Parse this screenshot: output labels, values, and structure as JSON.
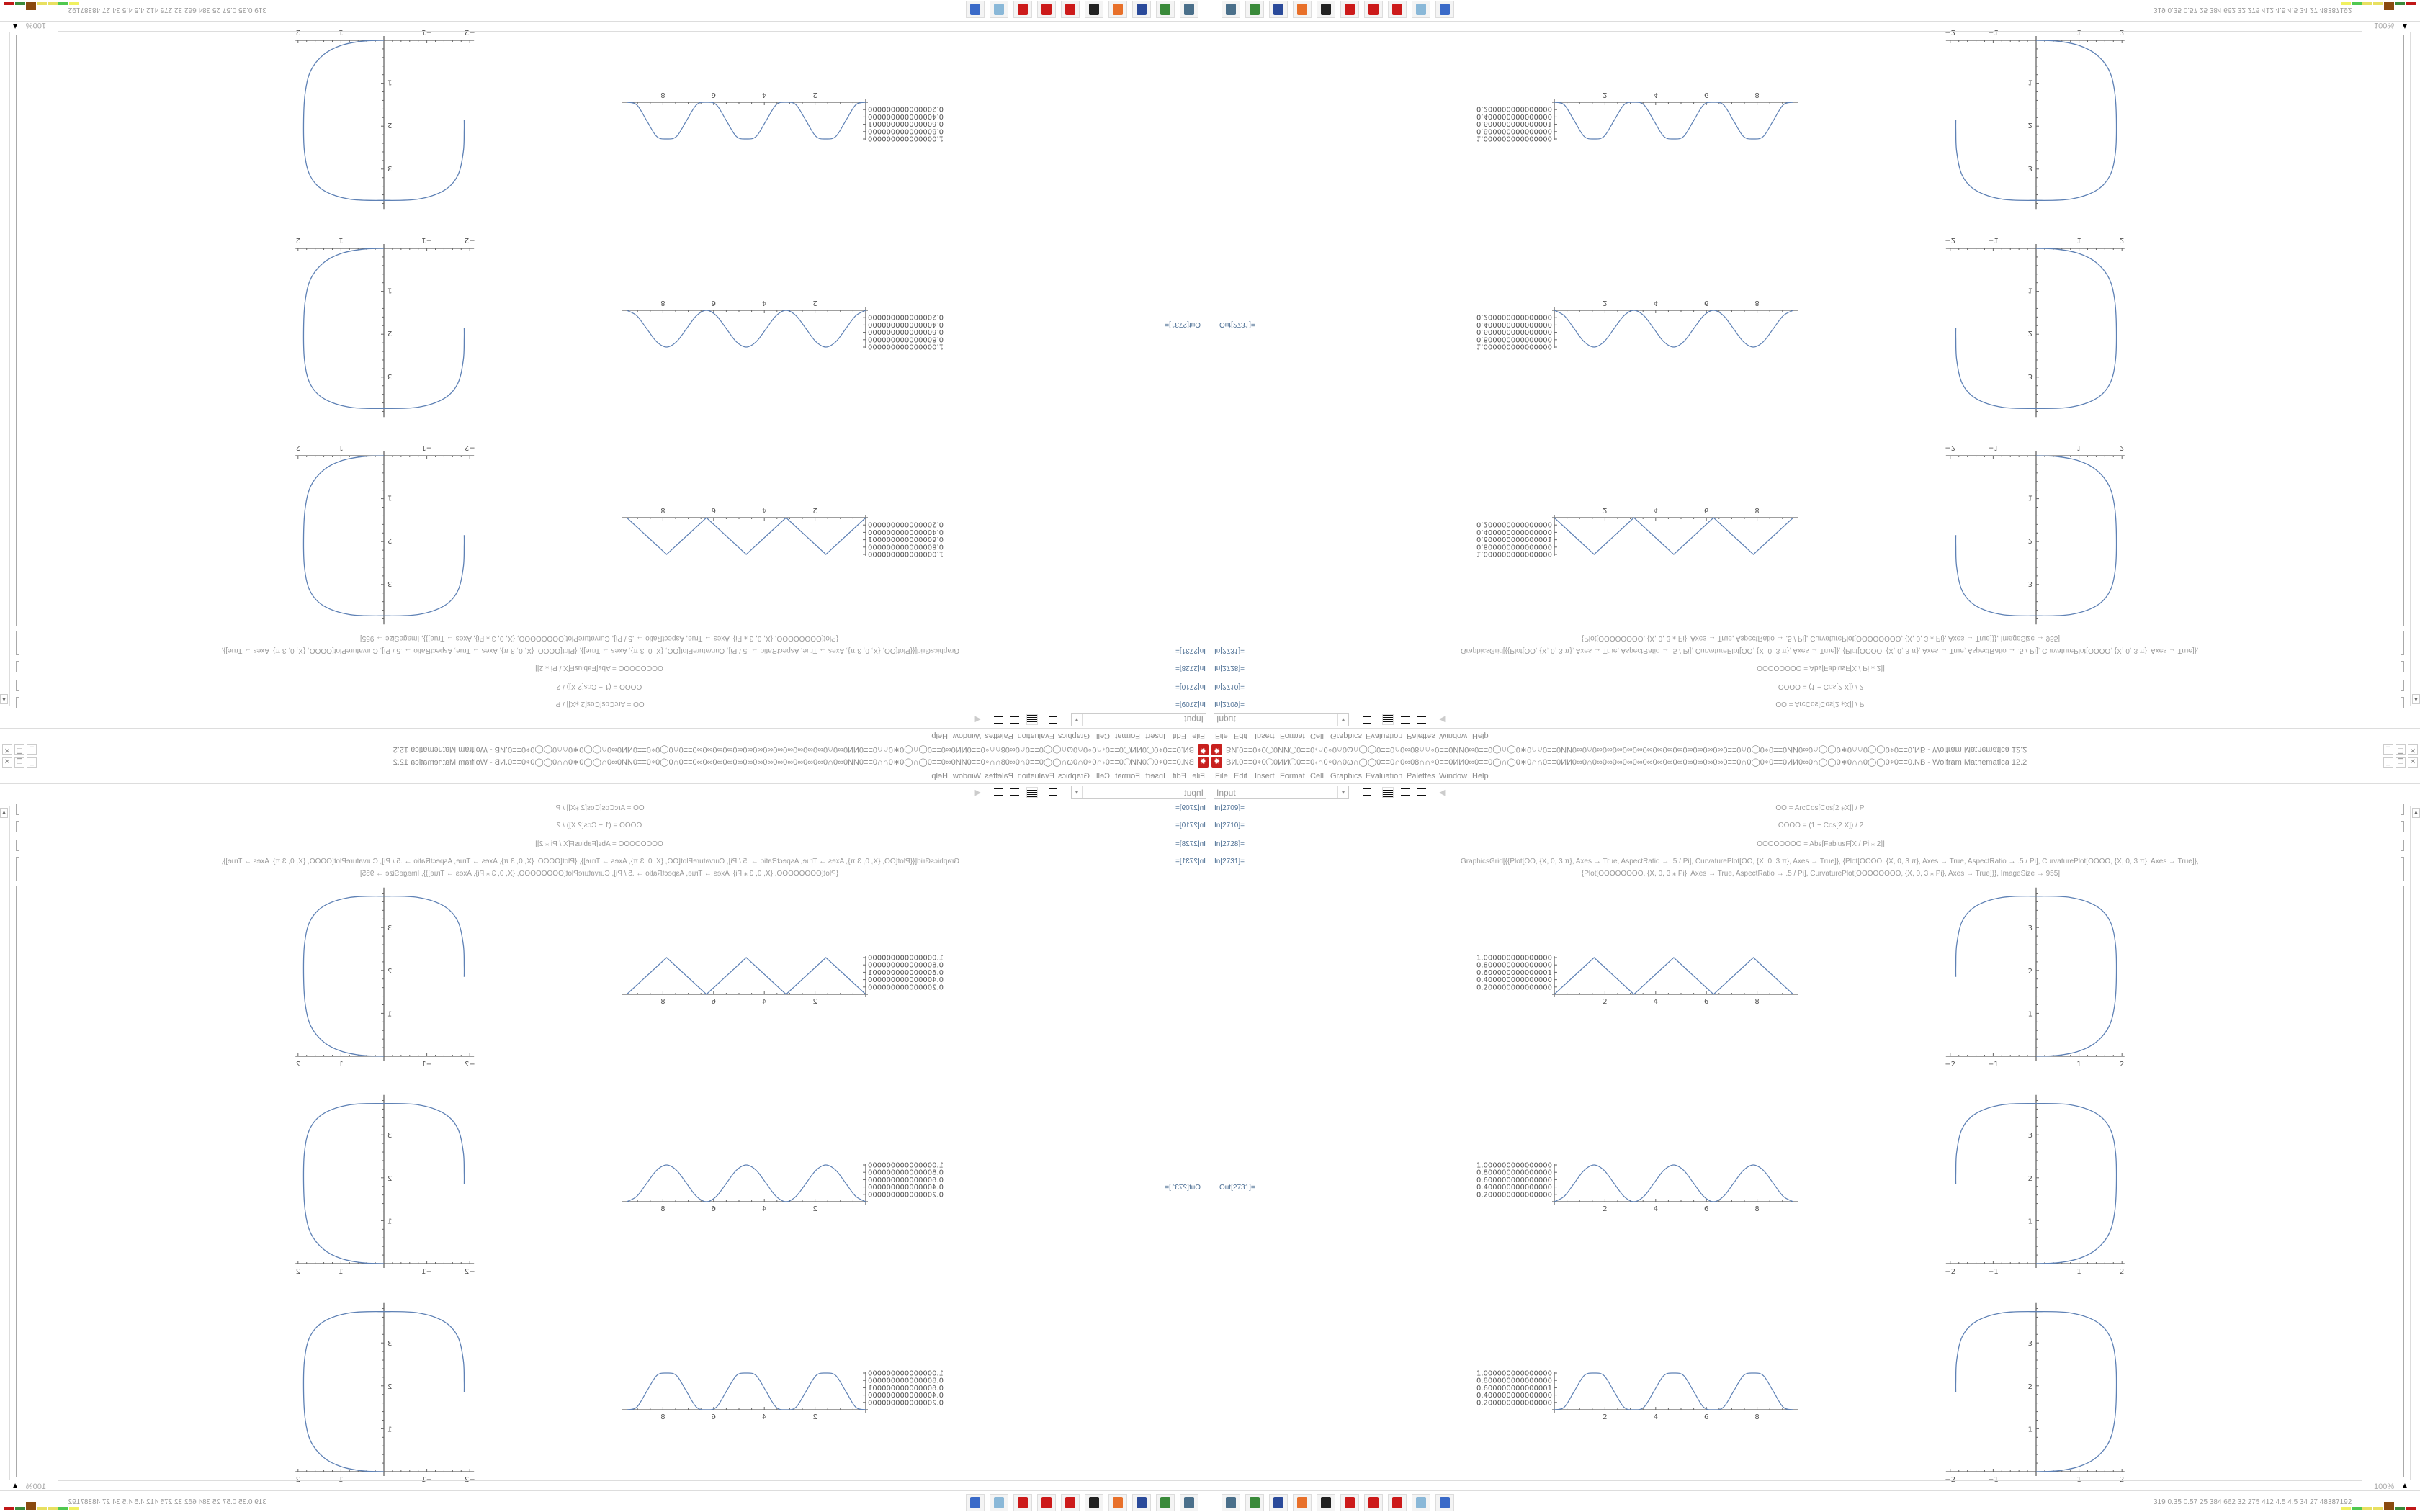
{
  "window": {
    "title": "BИ.0≡≡0⌖0◯0ИИ◯0≡≡0∗∩0⌖0∩0ω∩◯◯0≡≡0∩0∞08∩∩⌖0≡≡0ИИ0∞0≡≡0◯∩◯0∗0∩∩0≡≡0ИИ0∞0∩0∞0∞0∞0∞0∞0∞0∞0∞0∞0∞0∞0∞0∞0≡≡0∩0◯0⌖0≡≡0ИИ0∞0∩◯◯0∗0∩∩0◯◯0⌖0≡≡0.NB - Wolfram Mathematica 12.2",
    "buttons": {
      "minimize": "_",
      "restore": "❐",
      "close": "✕"
    }
  },
  "menu": [
    "File",
    "Edit",
    "Insert",
    "Format",
    "Cell",
    "Graphics",
    "Evaluation",
    "Palettes",
    "Window",
    "Help"
  ],
  "toolbar": {
    "style_value": "Input",
    "dropdown_arrow": "▾",
    "collapse": "◀"
  },
  "cells": [
    {
      "label": "In[2709]=",
      "code": "OO = ArcCos[Cos[2 ⁎X]] / Pi"
    },
    {
      "label": "In[2710]=",
      "code": "OOOO = (1 − Cos[2 X]) / 2"
    },
    {
      "label": "In[2728]=",
      "code": "OOOOOOOO = Abs[FabiusF[X / Pi ⁎ 2]]"
    },
    {
      "label": "In[2731]=",
      "code": "GraphicsGrid[{{Plot[OO, {X, 0, 3 π}, Axes → True, AspectRatio → .5 / Pi], CurvaturePlot[OO, {X, 0, 3 π}, Axes → True]}, {Plot[OOOO, {X, 0, 3 π}, Axes → True, AspectRatio → .5 / Pi], CurvaturePlot[OOOO, {X, 0, 3 π}, Axes → True]},",
      "code2": "{Plot[OOOOOOOO, {X, 0, 3 ⁎ Pi}, Axes → True, AspectRatio → .5 / Pi], CurvaturePlot[OOOOOOOO, {X, 0, 3 ⁎ Pi}, Axes → True]}}, ImageSize → 955]"
    }
  ],
  "output_label": "Out[2731]=",
  "status": {
    "zoom": "100%",
    "zoom_menu": "▲"
  },
  "taskbar": {
    "icons": [
      {
        "name": "network-icon",
        "color": "#4a6f8a"
      },
      {
        "name": "green-device-icon",
        "color": "#3a8a3a"
      },
      {
        "name": "floppy-icon",
        "color": "#2a4a9a"
      },
      {
        "name": "firefox-icon",
        "color": "#e8702a"
      },
      {
        "name": "inkscape-icon",
        "color": "#222222"
      },
      {
        "name": "mathematica-icon",
        "color": "#cc1a1a"
      },
      {
        "name": "mathematica-icon",
        "color": "#cc1a1a"
      },
      {
        "name": "mathematica-icon",
        "color": "#cc1a1a"
      },
      {
        "name": "calculator-icon",
        "color": "#8ab8d8"
      },
      {
        "name": "window-icon",
        "color": "#3a6ac8"
      }
    ],
    "stats": "319 0.35 0.57  25  384  662  32  275  412  4.5  4.5  34  27  48387192",
    "meter_colors": [
      "#f0f060",
      "#50c850",
      "#e8e060",
      "#e8e060",
      "#8a4a10",
      "#3a8a3a",
      "#c01818"
    ]
  },
  "chart_data": [
    {
      "type": "line",
      "title": "",
      "x": [
        0,
        0.3927,
        0.7854,
        1.1781,
        1.5708,
        1.9635,
        2.3562,
        2.7489,
        3.1416,
        3.5343,
        3.927,
        4.3197,
        4.7124,
        5.1051,
        5.4978,
        5.8905,
        6.2832,
        6.6759,
        7.0686,
        7.4613,
        7.854,
        8.2467,
        8.6394,
        9.0321,
        9.4248
      ],
      "values": [
        0,
        0.25,
        0.5,
        0.75,
        1,
        0.75,
        0.5,
        0.25,
        0,
        0.25,
        0.5,
        0.75,
        1,
        0.75,
        0.5,
        0.25,
        0,
        0.25,
        0.5,
        0.75,
        1,
        0.75,
        0.5,
        0.25,
        0
      ],
      "xlim": [
        0,
        9.42
      ],
      "ylim": [
        0,
        1
      ],
      "x_ticks": [
        "2",
        "4",
        "6",
        "8"
      ],
      "y_ticks": [
        "0.200000000000000",
        "0.400000000000000",
        "0.600000000000001",
        "0.800000000000000",
        "1.000000000000000"
      ],
      "smooth": false
    },
    {
      "type": "line",
      "title": "",
      "x": [
        0,
        0.3927,
        0.7854,
        1.1781,
        1.5708,
        1.9635,
        2.3562,
        2.7489,
        3.1416,
        3.5343,
        3.927,
        4.3197,
        4.7124,
        5.1051,
        5.4978,
        5.8905,
        6.2832,
        6.6759,
        7.0686,
        7.4613,
        7.854,
        8.2467,
        8.6394,
        9.0321,
        9.4248
      ],
      "values": [
        0,
        0.146,
        0.5,
        0.854,
        1,
        0.854,
        0.5,
        0.146,
        0,
        0.146,
        0.5,
        0.854,
        1,
        0.854,
        0.5,
        0.146,
        0,
        0.146,
        0.5,
        0.854,
        1,
        0.854,
        0.5,
        0.146,
        0
      ],
      "xlim": [
        0,
        9.42
      ],
      "ylim": [
        0,
        1
      ],
      "x_ticks": [
        "2",
        "4",
        "6",
        "8"
      ],
      "y_ticks": [
        "0.200000000000000",
        "0.400000000000000",
        "0.600000000000000",
        "0.800000000000000",
        "1.000000000000000"
      ],
      "smooth": true
    },
    {
      "type": "line",
      "title": "",
      "x": [
        0,
        0.3927,
        0.7854,
        1.1781,
        1.5708,
        1.9635,
        2.3562,
        2.7489,
        3.1416,
        3.5343,
        3.927,
        4.3197,
        4.7124,
        5.1051,
        5.4978,
        5.8905,
        6.2832,
        6.6759,
        7.0686,
        7.4613,
        7.854,
        8.2467,
        8.6394,
        9.0321,
        9.4248
      ],
      "values": [
        0,
        0.07,
        0.5,
        0.93,
        1,
        0.93,
        0.5,
        0.07,
        0,
        0.07,
        0.5,
        0.93,
        1,
        0.93,
        0.5,
        0.07,
        0,
        0.07,
        0.5,
        0.93,
        1,
        0.93,
        0.5,
        0.07,
        0
      ],
      "xlim": [
        0,
        9.42
      ],
      "ylim": [
        0,
        1
      ],
      "x_ticks": [
        "2",
        "4",
        "6",
        "8"
      ],
      "y_ticks": [
        "0.200000000000000",
        "0.400000000000000",
        "0.600000000000001",
        "0.800000000000000",
        "1.000000000000000"
      ],
      "smooth": true
    },
    {
      "type": "line",
      "title": "",
      "parametric": true,
      "points": [
        [
          0,
          0
        ],
        [
          0.5,
          0.02
        ],
        [
          1,
          0.12
        ],
        [
          1.4,
          0.33
        ],
        [
          1.7,
          0.7
        ],
        [
          1.83,
          1.2
        ],
        [
          1.87,
          1.85
        ],
        [
          1.85,
          2.6
        ],
        [
          1.72,
          3.15
        ],
        [
          1.4,
          3.5
        ],
        [
          0.8,
          3.7
        ],
        [
          0,
          3.73
        ],
        [
          -0.8,
          3.7
        ],
        [
          -1.4,
          3.5
        ],
        [
          -1.72,
          3.15
        ],
        [
          -1.85,
          2.6
        ],
        [
          -1.87,
          2.1
        ],
        [
          -1.87,
          1.85
        ]
      ],
      "xlim": [
        -2,
        2
      ],
      "ylim": [
        0,
        3.8
      ],
      "x_ticks": [
        "-2",
        "-1",
        "1",
        "2"
      ],
      "y_ticks": [
        "1",
        "2",
        "3"
      ]
    }
  ],
  "colors": {
    "curve": "#5e81b5",
    "axis": "#666666",
    "label": "#4d6f94"
  }
}
